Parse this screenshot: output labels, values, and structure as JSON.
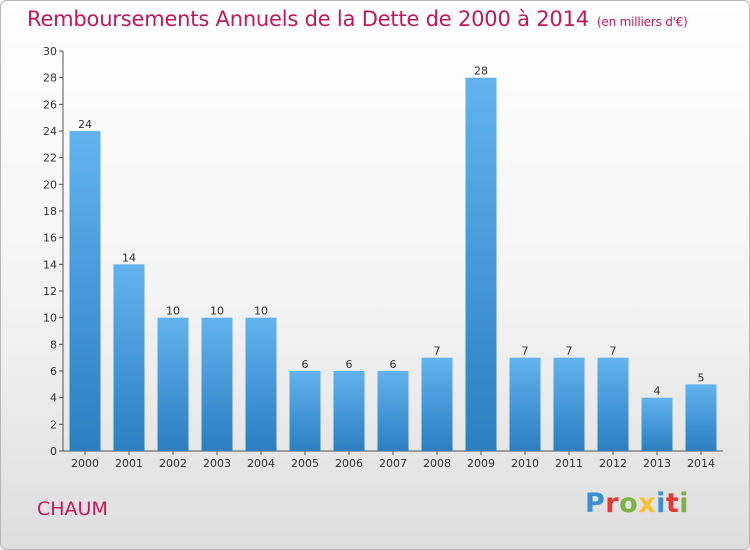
{
  "header": {
    "title": "Remboursements Annuels de la Dette de 2000 à 2014",
    "unit": "(en milliers d'€)"
  },
  "footer": {
    "commune": "CHAUM",
    "logo_text": "Proxiti",
    "logo_colors": [
      "#3b8fd6",
      "#e53935",
      "#7cb342",
      "#fbc02d",
      "#3b8fd6",
      "#e53935",
      "#7cb342"
    ]
  },
  "colors": {
    "bar_top": "#62b3ee",
    "bar_bottom": "#2b7fc0",
    "title": "#c2185b"
  },
  "chart_data": {
    "type": "bar",
    "categories": [
      "2000",
      "2001",
      "2002",
      "2003",
      "2004",
      "2005",
      "2006",
      "2007",
      "2008",
      "2009",
      "2010",
      "2011",
      "2012",
      "2013",
      "2014"
    ],
    "values": [
      24,
      14,
      10,
      10,
      10,
      6,
      6,
      6,
      7,
      28,
      7,
      7,
      7,
      4,
      5
    ],
    "data_labels": [
      "24",
      "14",
      "10",
      "10",
      "10",
      "6",
      "6",
      "6",
      "7",
      "28",
      "7",
      "7",
      "7",
      "4",
      "5"
    ],
    "ylim": [
      0,
      30
    ],
    "yticks": [
      "0",
      "2",
      "4",
      "6",
      "8",
      "10",
      "12",
      "14",
      "16",
      "18",
      "20",
      "22",
      "24",
      "26",
      "28",
      "30"
    ],
    "grid": false,
    "legend": "none"
  }
}
